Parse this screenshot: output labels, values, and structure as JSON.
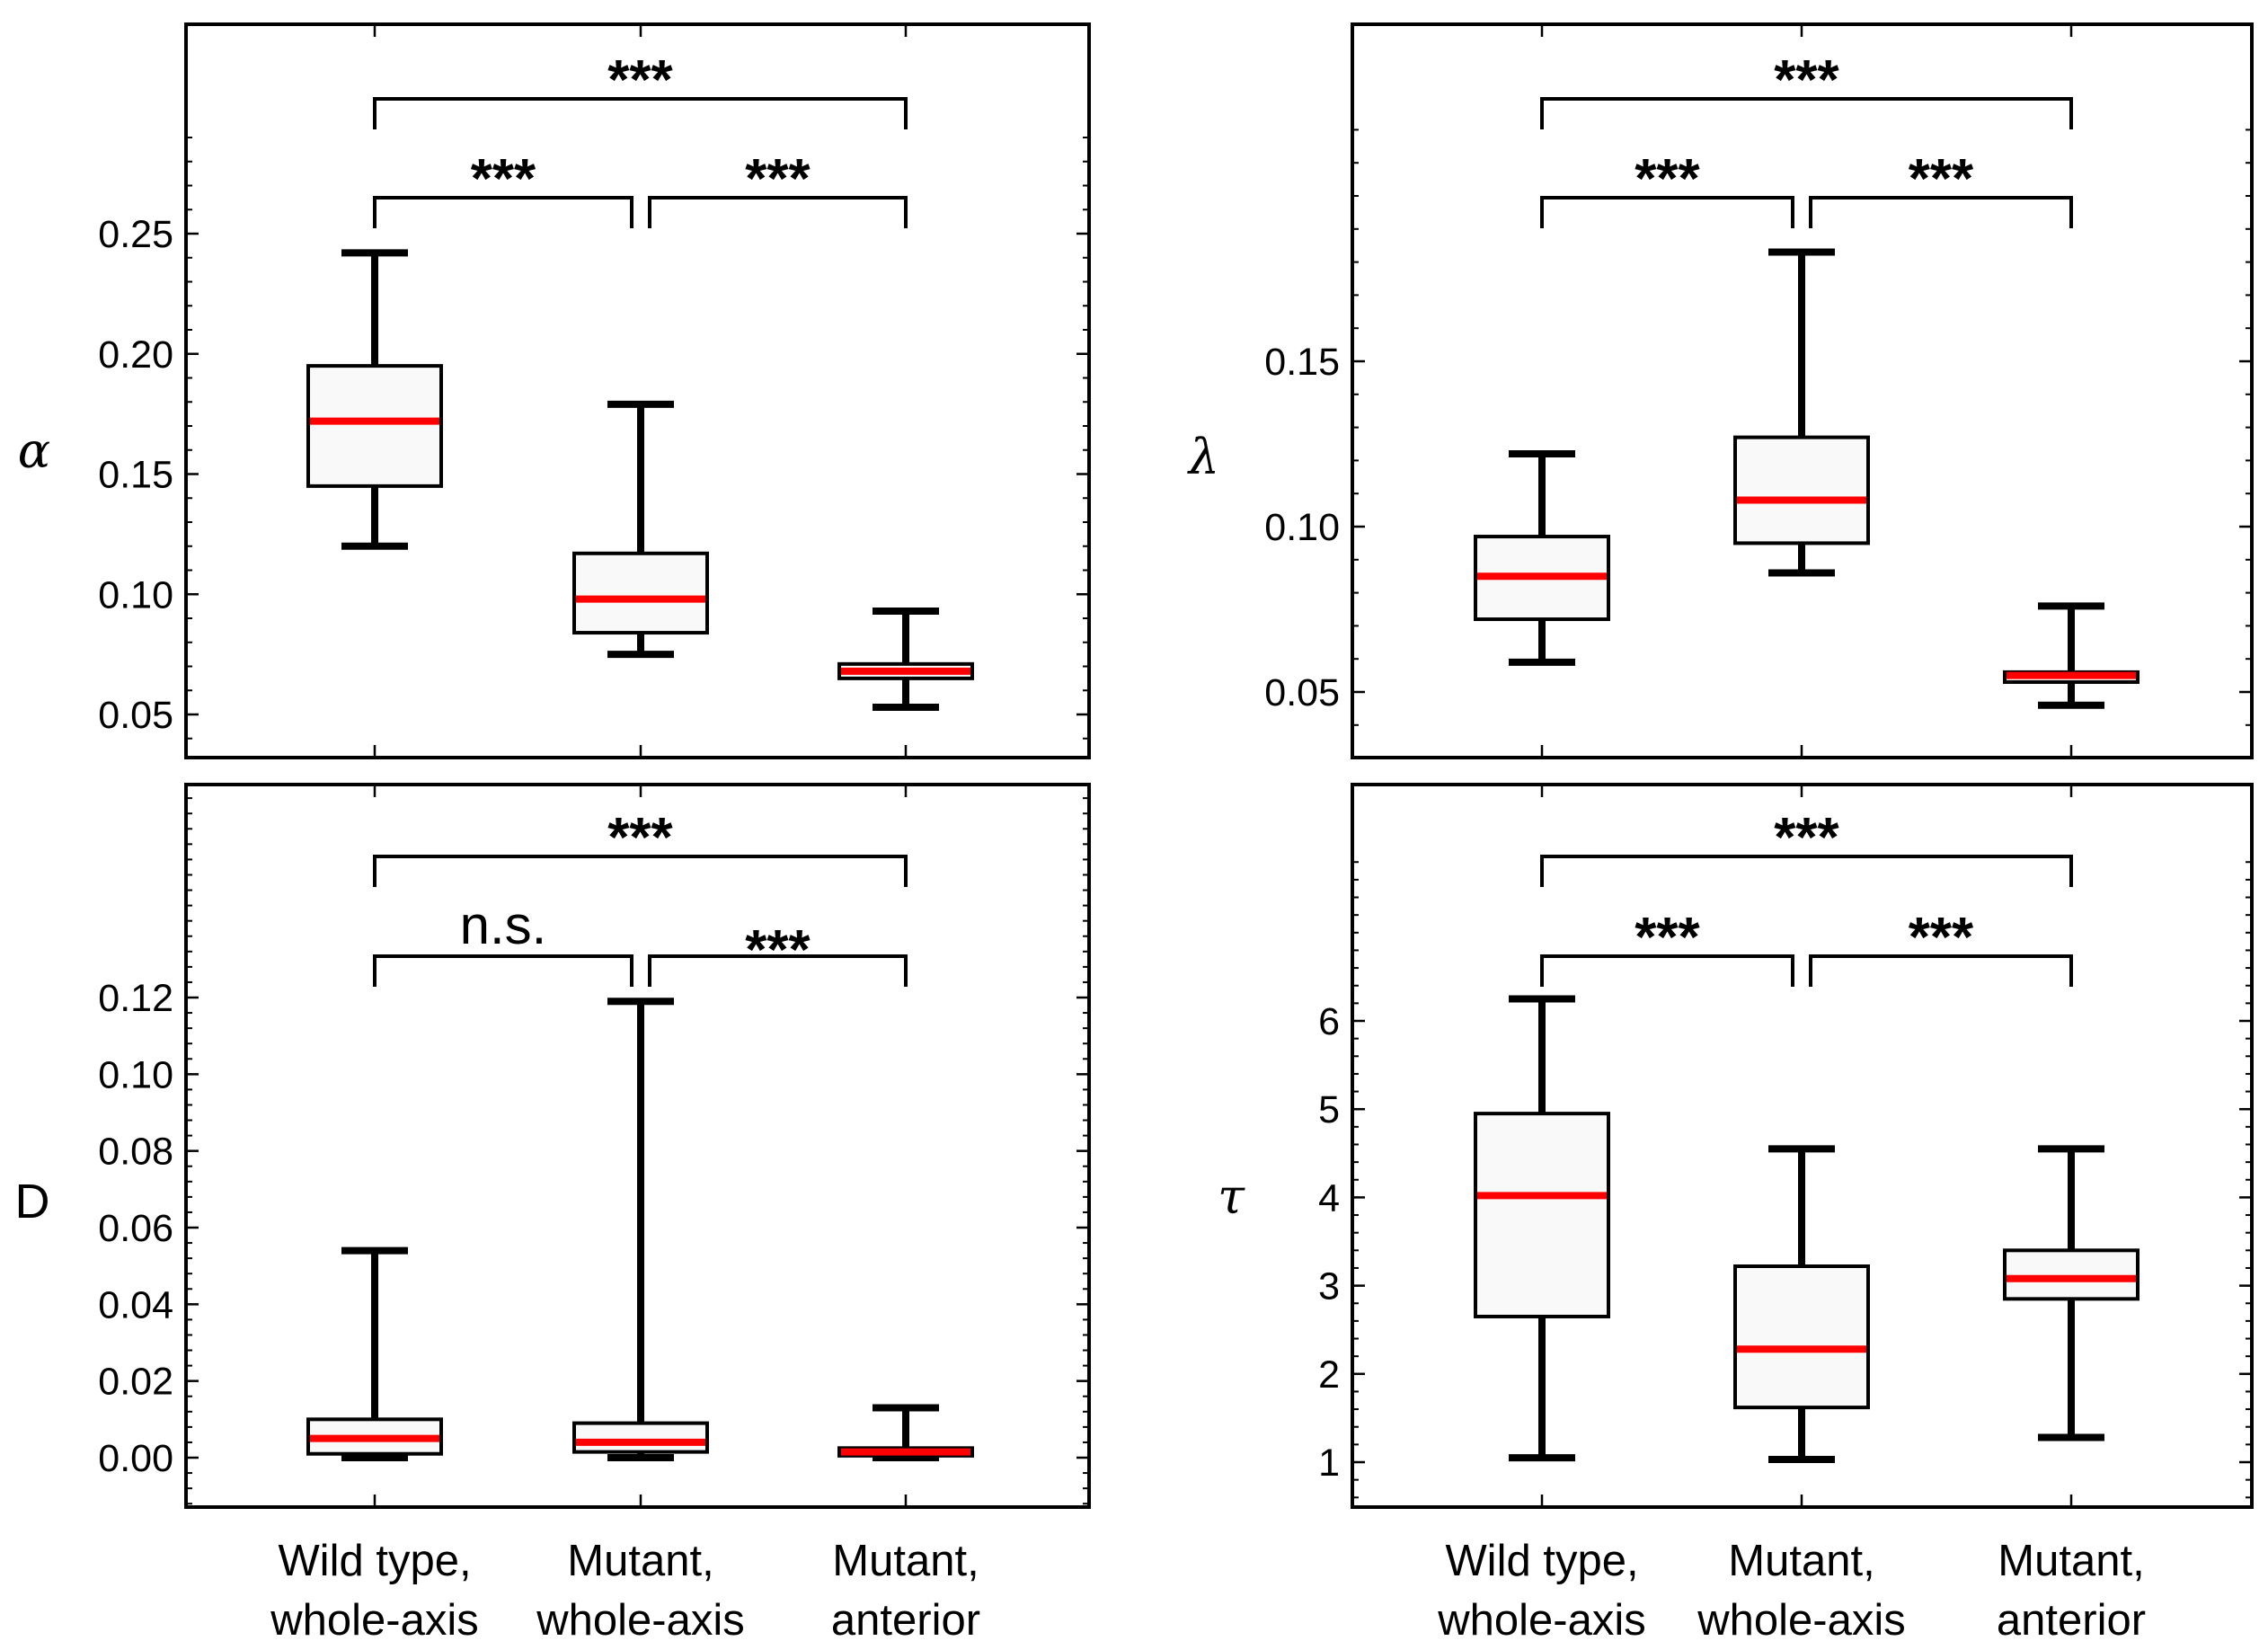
{
  "chart_data": [
    {
      "type": "box",
      "ylabel": "α",
      "ylim": [
        0.03,
        0.3
      ],
      "yticks": [
        0.05,
        0.1,
        0.15,
        0.2,
        0.25
      ],
      "ytick_labels": [
        "0.05",
        "0.10",
        "0.15",
        "0.20",
        "0.25"
      ],
      "categories": [],
      "boxes": [
        {
          "min": 0.12,
          "q1": 0.145,
          "median": 0.172,
          "q3": 0.195,
          "max": 0.242
        },
        {
          "min": 0.075,
          "q1": 0.084,
          "median": 0.098,
          "q3": 0.117,
          "max": 0.179
        },
        {
          "min": 0.053,
          "q1": 0.065,
          "median": 0.068,
          "q3": 0.071,
          "max": 0.093
        }
      ],
      "significance": [
        {
          "from": 0,
          "to": 1,
          "label": "***",
          "level": 1
        },
        {
          "from": 1,
          "to": 2,
          "label": "***",
          "level": 1
        },
        {
          "from": 0,
          "to": 2,
          "label": "***",
          "level": 2
        }
      ]
    },
    {
      "type": "box",
      "ylabel": "λ",
      "ylim": [
        0.03,
        0.23
      ],
      "yticks": [
        0.05,
        0.1,
        0.15
      ],
      "ytick_labels": [
        "0.05",
        "0.10",
        "0.15"
      ],
      "categories": [],
      "boxes": [
        {
          "min": 0.059,
          "q1": 0.072,
          "median": 0.085,
          "q3": 0.097,
          "max": 0.122
        },
        {
          "min": 0.086,
          "q1": 0.095,
          "median": 0.108,
          "q3": 0.127,
          "max": 0.183
        },
        {
          "min": 0.046,
          "q1": 0.053,
          "median": 0.055,
          "q3": 0.056,
          "max": 0.076
        }
      ],
      "significance": [
        {
          "from": 0,
          "to": 1,
          "label": "***",
          "level": 1
        },
        {
          "from": 1,
          "to": 2,
          "label": "***",
          "level": 1
        },
        {
          "from": 0,
          "to": 2,
          "label": "***",
          "level": 2
        }
      ]
    },
    {
      "type": "box",
      "ylabel": "D",
      "ylim": [
        -0.013,
        0.18
      ],
      "yticks": [
        0.0,
        0.02,
        0.04,
        0.06,
        0.08,
        0.1,
        0.12
      ],
      "ytick_labels": [
        "0.00",
        "0.02",
        "0.04",
        "0.06",
        "0.08",
        "0.10",
        "0.12"
      ],
      "categories": [
        "Wild type,|whole-axis",
        "Mutant,|whole-axis",
        "Mutant,|anterior"
      ],
      "boxes": [
        {
          "min": 0.0,
          "q1": 0.001,
          "median": 0.005,
          "q3": 0.01,
          "max": 0.054
        },
        {
          "min": 0.0,
          "q1": 0.0015,
          "median": 0.004,
          "q3": 0.009,
          "max": 0.119
        },
        {
          "min": 0.0,
          "q1": 0.0005,
          "median": 0.0015,
          "q3": 0.0025,
          "max": 0.013
        }
      ],
      "significance": [
        {
          "from": 0,
          "to": 1,
          "label": "n.s.",
          "level": 1
        },
        {
          "from": 1,
          "to": 2,
          "label": "***",
          "level": 1
        },
        {
          "from": 0,
          "to": 2,
          "label": "***",
          "level": 2
        }
      ]
    },
    {
      "type": "box",
      "ylabel": "τ",
      "ylim": [
        0.45,
        8.0
      ],
      "yticks": [
        1,
        2,
        3,
        4,
        5,
        6
      ],
      "ytick_labels": [
        "1",
        "2",
        "3",
        "4",
        "5",
        "6"
      ],
      "categories": [
        "Wild type,|whole-axis",
        "Mutant,|whole-axis",
        "Mutant,|anterior"
      ],
      "boxes": [
        {
          "min": 1.05,
          "q1": 2.65,
          "median": 4.02,
          "q3": 4.95,
          "max": 6.25
        },
        {
          "min": 1.03,
          "q1": 1.62,
          "median": 2.28,
          "q3": 3.22,
          "max": 4.55
        },
        {
          "min": 1.28,
          "q1": 2.85,
          "median": 3.08,
          "q3": 3.4,
          "max": 4.55
        }
      ],
      "significance": [
        {
          "from": 0,
          "to": 1,
          "label": "***",
          "level": 1
        },
        {
          "from": 1,
          "to": 2,
          "label": "***",
          "level": 1
        },
        {
          "from": 0,
          "to": 2,
          "label": "***",
          "level": 2
        }
      ]
    }
  ],
  "colors": {
    "median": "#ff0000",
    "box_fill": "#f9f9f9",
    "stroke": "#000000"
  }
}
